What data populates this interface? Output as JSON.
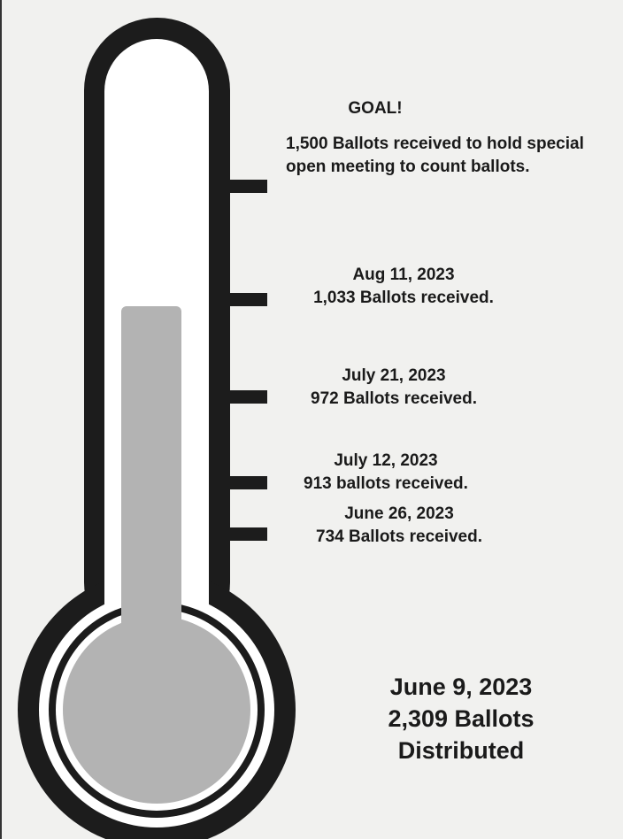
{
  "colors": {
    "outline": "#1c1c1c",
    "fill": "#b3b3b3",
    "inner": "#ffffff",
    "background": "#f1f1ef"
  },
  "chart_data": {
    "type": "thermometer",
    "unit": "Ballots",
    "goal": {
      "heading": "GOAL!",
      "value": 1500,
      "text": "1,500 Ballots received to hold special open meeting to count ballots."
    },
    "milestones": [
      {
        "date": "Aug 11, 2023",
        "value": 1033,
        "text": "1,033 Ballots received."
      },
      {
        "date": "July 21, 2023",
        "value": 972,
        "text": "972 Ballots received."
      },
      {
        "date": "July 12, 2023",
        "value": 913,
        "text": "913 ballots received."
      },
      {
        "date": "June 26, 2023",
        "value": 734,
        "text": "734 Ballots received."
      }
    ],
    "current_fill_value": 1033,
    "distributed": {
      "date": "June 9, 2023",
      "count_text": "2,309 Ballots",
      "status": "Distributed",
      "value": 2309
    }
  }
}
